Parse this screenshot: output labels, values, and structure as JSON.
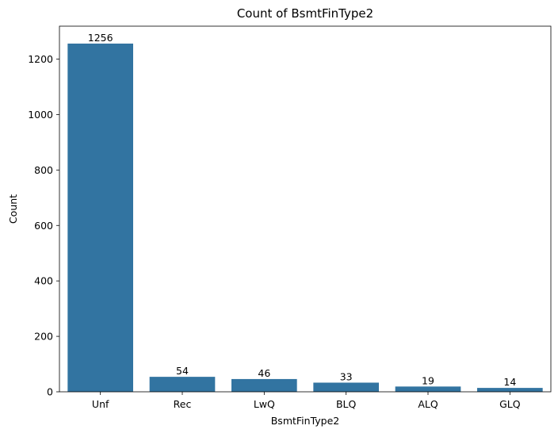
{
  "chart_data": {
    "type": "bar",
    "title": "Count of BsmtFinType2",
    "xlabel": "BsmtFinType2",
    "ylabel": "Count",
    "categories": [
      "Unf",
      "Rec",
      "LwQ",
      "BLQ",
      "ALQ",
      "GLQ"
    ],
    "values": [
      1256,
      54,
      46,
      33,
      19,
      14
    ],
    "data_labels": [
      "1256",
      "54",
      "46",
      "33",
      "19",
      "14"
    ],
    "ylim": [
      0,
      1318.8
    ],
    "yticks": [
      0,
      200,
      400,
      600,
      800,
      1000,
      1200
    ],
    "grid": false,
    "bar_color": "#3274a1"
  }
}
